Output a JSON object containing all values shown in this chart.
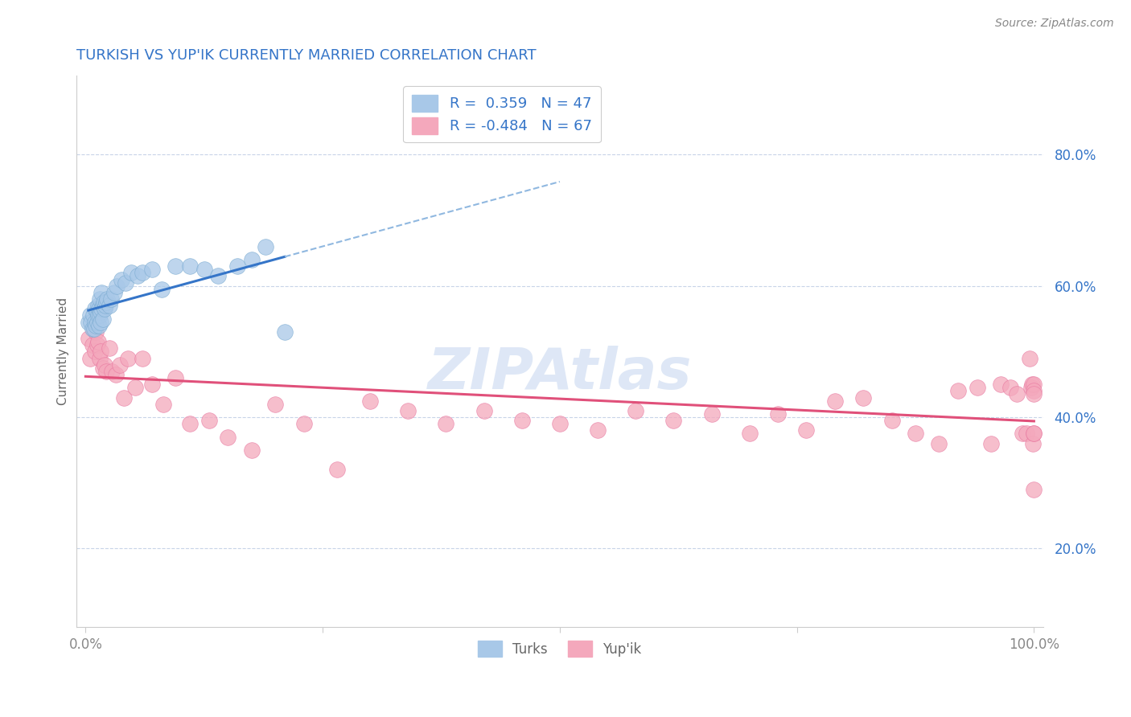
{
  "title": "TURKISH VS YUP'IK CURRENTLY MARRIED CORRELATION CHART",
  "source": "Source: ZipAtlas.com",
  "ylabel": "Currently Married",
  "xlim": [
    -0.01,
    1.01
  ],
  "ylim": [
    0.08,
    0.92
  ],
  "xtick_positions": [
    0.0,
    0.25,
    0.5,
    0.75,
    1.0
  ],
  "xtick_labels": [
    "0.0%",
    "",
    "",
    "",
    "100.0%"
  ],
  "ytick_positions": [
    0.2,
    0.4,
    0.6,
    0.8
  ],
  "ytick_labels": [
    "20.0%",
    "40.0%",
    "60.0%",
    "80.0%"
  ],
  "turks_R": 0.359,
  "turks_N": 47,
  "yupik_R": -0.484,
  "yupik_N": 67,
  "turks_color": "#a8c8e8",
  "yupik_color": "#f4a8bc",
  "turks_edge_color": "#7aaad0",
  "yupik_edge_color": "#e878a0",
  "turks_line_color": "#3575c8",
  "yupik_line_color": "#e0507a",
  "dashed_line_color": "#90b8e0",
  "legend_text_color": "#3575c8",
  "background_color": "#ffffff",
  "grid_color": "#c8d4e8",
  "watermark_color": "#c8d8f0",
  "title_color": "#3575c8",
  "source_color": "#888888",
  "turks_x": [
    0.003,
    0.005,
    0.006,
    0.007,
    0.008,
    0.009,
    0.01,
    0.01,
    0.011,
    0.012,
    0.012,
    0.013,
    0.013,
    0.014,
    0.014,
    0.015,
    0.015,
    0.016,
    0.016,
    0.017,
    0.017,
    0.018,
    0.018,
    0.019,
    0.02,
    0.021,
    0.022,
    0.023,
    0.025,
    0.027,
    0.03,
    0.033,
    0.038,
    0.042,
    0.048,
    0.055,
    0.06,
    0.07,
    0.08,
    0.095,
    0.11,
    0.125,
    0.14,
    0.16,
    0.175,
    0.19,
    0.21
  ],
  "turks_y": [
    0.545,
    0.555,
    0.545,
    0.535,
    0.555,
    0.535,
    0.545,
    0.565,
    0.54,
    0.56,
    0.545,
    0.555,
    0.57,
    0.54,
    0.565,
    0.555,
    0.58,
    0.56,
    0.545,
    0.565,
    0.59,
    0.57,
    0.55,
    0.575,
    0.565,
    0.57,
    0.575,
    0.58,
    0.57,
    0.58,
    0.59,
    0.6,
    0.61,
    0.605,
    0.62,
    0.615,
    0.62,
    0.625,
    0.595,
    0.63,
    0.63,
    0.625,
    0.615,
    0.63,
    0.64,
    0.66,
    0.53
  ],
  "yupik_x": [
    0.003,
    0.005,
    0.007,
    0.008,
    0.01,
    0.011,
    0.012,
    0.013,
    0.015,
    0.016,
    0.018,
    0.02,
    0.022,
    0.025,
    0.028,
    0.032,
    0.036,
    0.04,
    0.045,
    0.052,
    0.06,
    0.07,
    0.082,
    0.095,
    0.11,
    0.13,
    0.15,
    0.175,
    0.2,
    0.23,
    0.265,
    0.3,
    0.34,
    0.38,
    0.42,
    0.46,
    0.5,
    0.54,
    0.58,
    0.62,
    0.66,
    0.7,
    0.73,
    0.76,
    0.79,
    0.82,
    0.85,
    0.875,
    0.9,
    0.92,
    0.94,
    0.955,
    0.965,
    0.975,
    0.982,
    0.988,
    0.992,
    0.995,
    0.997,
    0.998,
    0.999,
    1.0,
    1.0,
    1.0,
    1.0,
    1.0,
    1.0
  ],
  "yupik_y": [
    0.52,
    0.49,
    0.51,
    0.535,
    0.5,
    0.53,
    0.51,
    0.515,
    0.49,
    0.5,
    0.475,
    0.48,
    0.47,
    0.505,
    0.47,
    0.465,
    0.48,
    0.43,
    0.49,
    0.445,
    0.49,
    0.45,
    0.42,
    0.46,
    0.39,
    0.395,
    0.37,
    0.35,
    0.42,
    0.39,
    0.32,
    0.425,
    0.41,
    0.39,
    0.41,
    0.395,
    0.39,
    0.38,
    0.41,
    0.395,
    0.405,
    0.375,
    0.405,
    0.38,
    0.425,
    0.43,
    0.395,
    0.375,
    0.36,
    0.44,
    0.445,
    0.36,
    0.45,
    0.445,
    0.435,
    0.375,
    0.375,
    0.49,
    0.445,
    0.45,
    0.36,
    0.45,
    0.44,
    0.435,
    0.375,
    0.375,
    0.29
  ],
  "turks_line_start_x": 0.003,
  "turks_line_end_solid_x": 0.21,
  "turks_line_end_dashed_x": 0.5,
  "yupik_line_start_x": 0.0,
  "yupik_line_end_x": 1.0,
  "turks_line_y_at_0": 0.53,
  "turks_line_y_at_021": 0.64,
  "yupik_line_y_at_0": 0.52,
  "yupik_line_y_at_1": 0.37
}
